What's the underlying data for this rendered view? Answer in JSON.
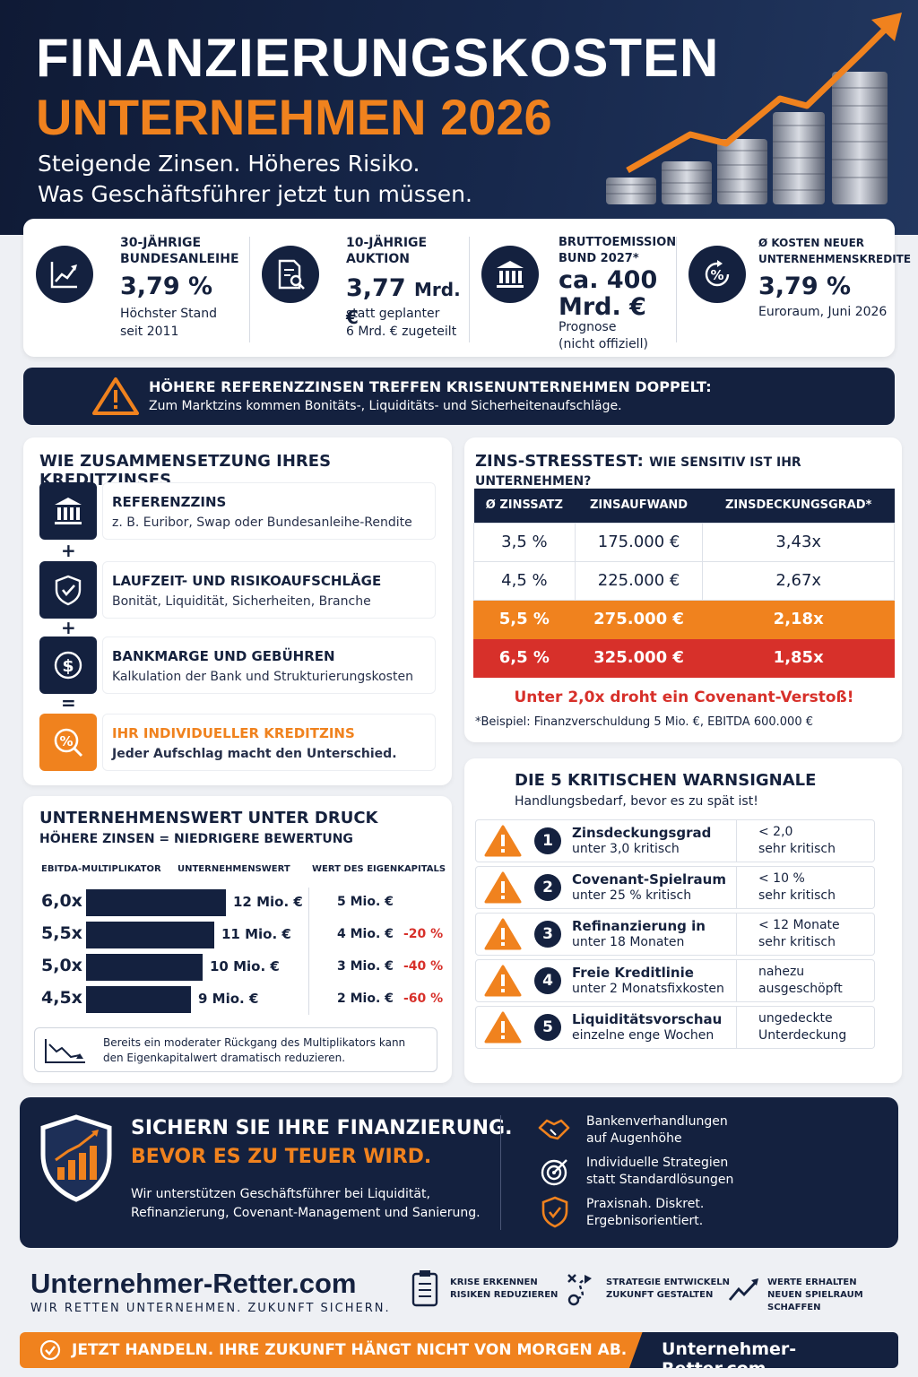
{
  "hero": {
    "title_line1": "FINANZIERUNGSKOSTEN",
    "title_line2": "UNTERNEHMEN 2026",
    "subtitle_line1": "Steigende Zinsen. Höheres Risiko.",
    "subtitle_line2": "Was Geschäftsführer jetzt tun müssen."
  },
  "stats": [
    {
      "label_line1": "30-JÄHRIGE",
      "label_line2": "BUNDESANLEIHE",
      "value": "3,79 %",
      "value_unit": "",
      "note_line1": "Höchster Stand",
      "note_line2": "seit 2011",
      "icon": "chart-up-icon"
    },
    {
      "label_line1": "10-JÄHRIGE",
      "label_line2": "AUKTION",
      "value": "3,77",
      "value_unit": "Mrd. €",
      "note_line1": "statt geplanter",
      "note_line2": "6 Mrd. € zugeteilt",
      "icon": "document-search-icon"
    },
    {
      "label_line1": "BRUTTOEMISSION",
      "label_line2": "BUND 2027*",
      "value": "ca. 400",
      "value_unit": "Mrd. €",
      "note_line1": "Prognose",
      "note_line2": "(nicht offiziell)",
      "icon": "bank-icon"
    },
    {
      "label_line1": "Ø KOSTEN NEUER",
      "label_line2": "UNTERNEHMENSKREDITE",
      "value": "3,79 %",
      "value_unit": "",
      "note_line1": "Euroraum, Juni 2026",
      "note_line2": "",
      "icon": "percent-cycle-icon"
    }
  ],
  "alert": {
    "title": "HÖHERE REFERENZZINSEN TREFFEN KRISENUNTERNEHMEN DOPPELT:",
    "text": "Zum Marktzins kommen Bonitäts-, Liquiditäts- und Sicherheitenaufschläge."
  },
  "composition": {
    "heading": "WIE ZUSAMMENSETZUNG IHRES KREDITZINSES",
    "items": [
      {
        "title": "REFERENZZINS",
        "text": "z. B. Euribor, Swap oder Bundesanleihe-Rendite"
      },
      {
        "title": "LAUFZEIT- UND RISIKOAUFSCHLÄGE",
        "text": "Bonität, Liquidität, Sicherheiten, Branche"
      },
      {
        "title": "BANKMARGE UND GEBÜHREN",
        "text": "Kalkulation der Bank und Strukturierungskosten"
      },
      {
        "title": "IHR INDIVIDUELLER KREDITZINS",
        "text": "Jeder Aufschlag macht den Unterschied."
      }
    ],
    "op_plus": "+",
    "op_equals": "="
  },
  "stress": {
    "heading": "ZINS-STRESSTEST:",
    "heading_sub": "WIE SENSITIV IST IHR UNTERNEHMEN?",
    "columns": [
      "Ø ZINSSATZ",
      "ZINSAUFWAND",
      "ZINSDECKUNGSGRAD*"
    ],
    "rows": [
      [
        "3,5 %",
        "175.000 €",
        "3,43x"
      ],
      [
        "4,5 %",
        "225.000 €",
        "2,67x"
      ],
      [
        "5,5 %",
        "275.000 €",
        "2,18x"
      ],
      [
        "6,5 %",
        "325.000 €",
        "1,85x"
      ]
    ],
    "warning": "Unter 2,0x droht ein Covenant-Verstoß!",
    "footnote": "*Beispiel: Finanzverschuldung 5 Mio. €, EBITDA 600.000 €"
  },
  "valuation": {
    "heading": "UNTERNEHMENSWERT UNTER DRUCK",
    "subheading": "HÖHERE ZINSEN = NIEDRIGERE BEWERTUNG",
    "col1": "EBITDA-MULTIPLIKATOR",
    "col2": "UNTERNEHMENSWERT",
    "col3": "WERT DES EIGENKAPITALS",
    "rows": [
      {
        "mult": "6,0x",
        "value": 12,
        "value_label": "12 Mio. €",
        "equity": "5 Mio. €",
        "change": ""
      },
      {
        "mult": "5,5x",
        "value": 11,
        "value_label": "11 Mio. €",
        "equity": "4 Mio. €",
        "change": "-20 %"
      },
      {
        "mult": "5,0x",
        "value": 10,
        "value_label": "10 Mio. €",
        "equity": "3 Mio. €",
        "change": "-40 %"
      },
      {
        "mult": "4,5x",
        "value": 9,
        "value_label": "9 Mio. €",
        "equity": "2 Mio. €",
        "change": "-60 %"
      }
    ],
    "note": "Bereits ein moderater Rückgang des Multiplikators kann den Eigenkapitalwert dramatisch reduzieren."
  },
  "warnings": {
    "heading": "DIE 5 KRITISCHEN WARNSIGNALE",
    "subheading": "Handlungsbedarf, bevor es zu spät ist!",
    "items": [
      {
        "num": "1",
        "title": "Zinsdeckungsgrad",
        "sub": "unter 3,0 kritisch",
        "v1": "< 2,0",
        "v2": "sehr kritisch"
      },
      {
        "num": "2",
        "title": "Covenant-Spielraum",
        "sub": "unter 25 % kritisch",
        "v1": "< 10 %",
        "v2": "sehr kritisch"
      },
      {
        "num": "3",
        "title": "Refinanzierung in",
        "sub": "unter 18 Monaten",
        "v1": "< 12 Monate",
        "v2": "sehr kritisch"
      },
      {
        "num": "4",
        "title": "Freie Kreditlinie",
        "sub": "unter 2 Monatsfixkosten",
        "v1": "nahezu",
        "v2": "ausgeschöpft"
      },
      {
        "num": "5",
        "title": "Liquiditätsvorschau",
        "sub": "einzelne enge Wochen",
        "v1": "ungedeckte",
        "v2": "Unterdeckung"
      }
    ]
  },
  "cta": {
    "title1": "SICHERN SIE IHRE FINANZIERUNG.",
    "title2": "BEVOR ES ZU TEUER WIRD.",
    "text": "Wir unterstützen Geschäftsführer bei Liquidität, Refinanzierung, Covenant-Management und Sanierung.",
    "benefits": [
      {
        "line1": "Bankenverhandlungen",
        "line2": "auf Augenhöhe",
        "icon": "handshake-icon"
      },
      {
        "line1": "Individuelle Strategien",
        "line2": "statt Standardlösungen",
        "icon": "target-icon"
      },
      {
        "line1": "Praxisnah. Diskret.",
        "line2": "Ergebnisorientiert.",
        "icon": "shield-check-icon"
      }
    ]
  },
  "footer": {
    "brand": "Unternehmer-Retter.com",
    "slogan": "WIR RETTEN UNTERNEHMEN. ZUKUNFT SICHERN.",
    "items": [
      {
        "line1": "KRISE ERKENNEN",
        "line2": "RISIKEN REDUZIEREN",
        "icon": "clipboard-icon"
      },
      {
        "line1": "STRATEGIE ENTWICKELN",
        "line2": "ZUKUNFT GESTALTEN",
        "icon": "strategy-icon"
      },
      {
        "line1": "WERTE ERHALTEN",
        "line2": "NEUEN SPIELRAUM SCHAFFEN",
        "icon": "trend-icon"
      }
    ],
    "bar_text": "JETZT HANDELN. IHRE ZUKUNFT HÄNGT NICHT VON MORGEN AB.",
    "bar_url": "Unternehmer-Retter.com"
  },
  "colors": {
    "navy": "#14213f",
    "orange": "#f0821e",
    "red": "#d7302a"
  }
}
